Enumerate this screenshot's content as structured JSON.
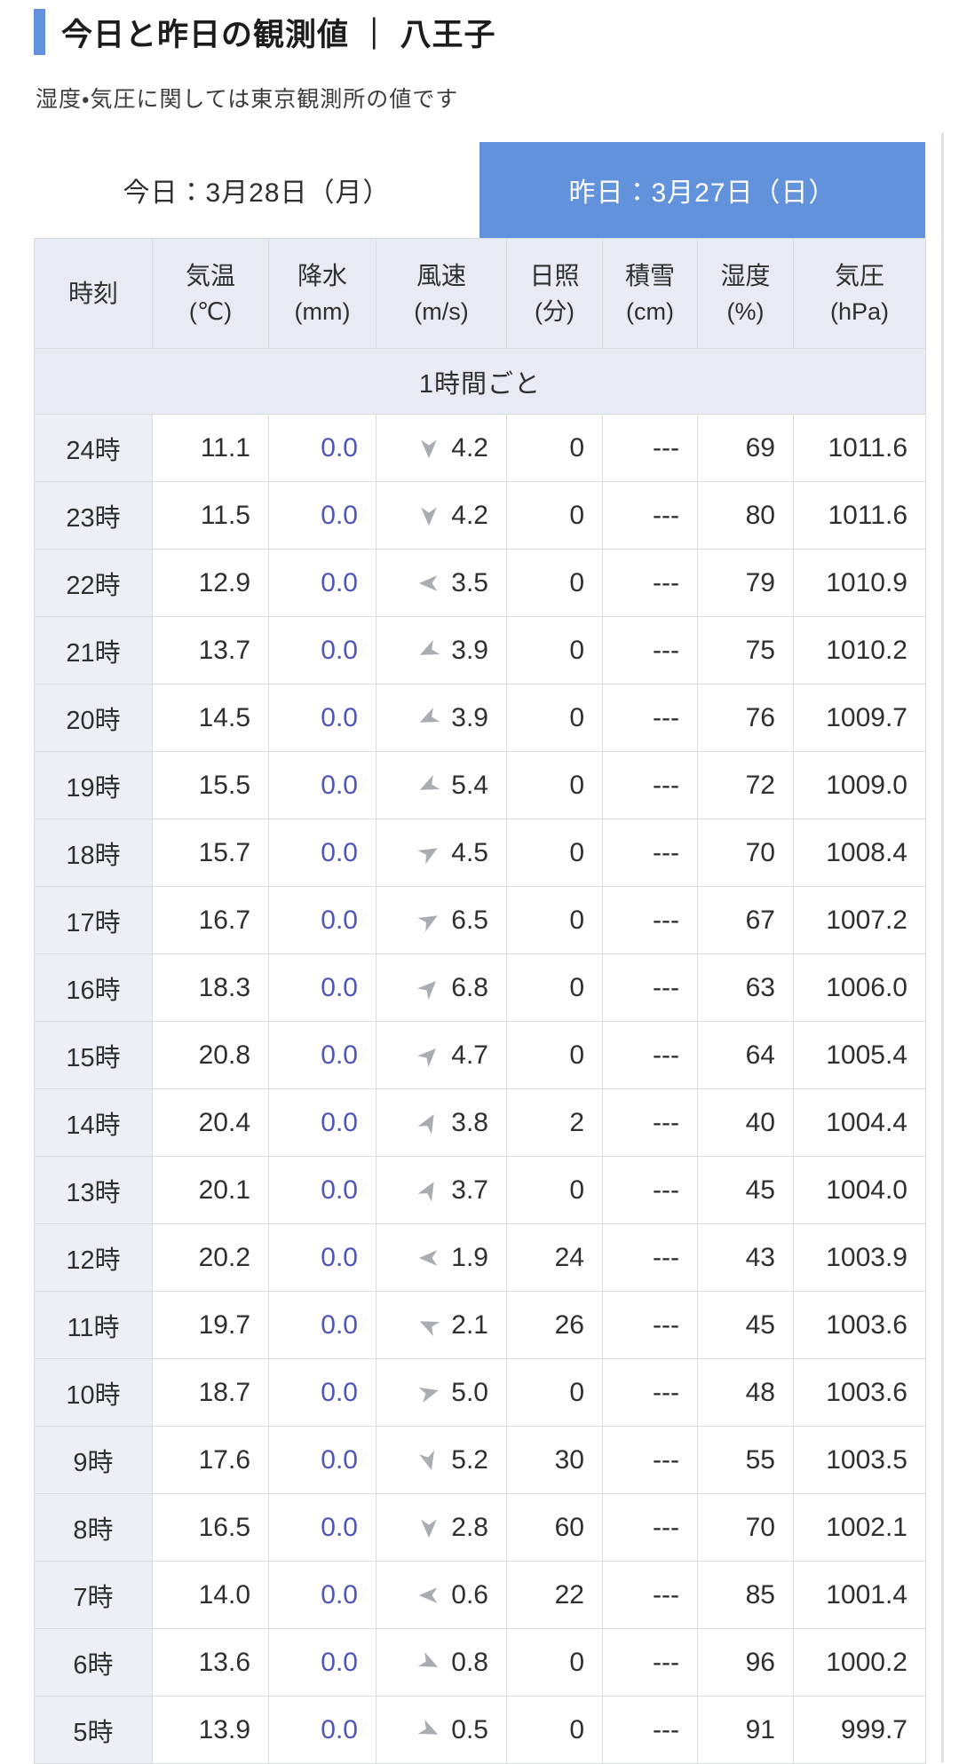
{
  "page": {
    "title": "今日と昨日の観測値 ｜ 八王子",
    "subtitle": "湿度・気圧に関しては東京観測所の値です"
  },
  "tabs": {
    "today": {
      "label": "今日：3月28日（月）",
      "active": false
    },
    "yesterday": {
      "label": "昨日：3月27日（日）",
      "active": true
    }
  },
  "colors": {
    "accent_blue": "#6292db",
    "precip_value_blue": "#4e57b5",
    "wind_arrow_gray": "#a9acb2",
    "header_bg": "#e8eaf4",
    "time_cell_bg": "#edeff7",
    "border": "#d8dade"
  },
  "table": {
    "columns": [
      {
        "label": "時刻",
        "unit": ""
      },
      {
        "label": "気温",
        "unit": "(℃)"
      },
      {
        "label": "降水",
        "unit": "(mm)"
      },
      {
        "label": "風速",
        "unit": "(m/s)"
      },
      {
        "label": "日照",
        "unit": "(分)"
      },
      {
        "label": "積雪",
        "unit": "(cm)"
      },
      {
        "label": "湿度",
        "unit": "(%)"
      },
      {
        "label": "気圧",
        "unit": "(hPa)"
      }
    ],
    "section_label": "1時間ごと",
    "rows": [
      {
        "time": "24時",
        "temp": "11.1",
        "precip": "0.0",
        "wind_dir_deg": 180,
        "wind": "4.2",
        "sun": "0",
        "snow": "---",
        "hum": "69",
        "pres": "1011.6"
      },
      {
        "time": "23時",
        "temp": "11.5",
        "precip": "0.0",
        "wind_dir_deg": 180,
        "wind": "4.2",
        "sun": "0",
        "snow": "---",
        "hum": "80",
        "pres": "1011.6"
      },
      {
        "time": "22時",
        "temp": "12.9",
        "precip": "0.0",
        "wind_dir_deg": 270,
        "wind": "3.5",
        "sun": "0",
        "snow": "---",
        "hum": "79",
        "pres": "1010.9"
      },
      {
        "time": "21時",
        "temp": "13.7",
        "precip": "0.0",
        "wind_dir_deg": 245,
        "wind": "3.9",
        "sun": "0",
        "snow": "---",
        "hum": "75",
        "pres": "1010.2"
      },
      {
        "time": "20時",
        "temp": "14.5",
        "precip": "0.0",
        "wind_dir_deg": 245,
        "wind": "3.9",
        "sun": "0",
        "snow": "---",
        "hum": "76",
        "pres": "1009.7"
      },
      {
        "time": "19時",
        "temp": "15.5",
        "precip": "0.0",
        "wind_dir_deg": 245,
        "wind": "5.4",
        "sun": "0",
        "snow": "---",
        "hum": "72",
        "pres": "1009.0"
      },
      {
        "time": "18時",
        "temp": "15.7",
        "precip": "0.0",
        "wind_dir_deg": 60,
        "wind": "4.5",
        "sun": "0",
        "snow": "---",
        "hum": "70",
        "pres": "1008.4"
      },
      {
        "time": "17時",
        "temp": "16.7",
        "precip": "0.0",
        "wind_dir_deg": 60,
        "wind": "6.5",
        "sun": "0",
        "snow": "---",
        "hum": "67",
        "pres": "1007.2"
      },
      {
        "time": "16時",
        "temp": "18.3",
        "precip": "0.0",
        "wind_dir_deg": 45,
        "wind": "6.8",
        "sun": "0",
        "snow": "---",
        "hum": "63",
        "pres": "1006.0"
      },
      {
        "time": "15時",
        "temp": "20.8",
        "precip": "0.0",
        "wind_dir_deg": 45,
        "wind": "4.7",
        "sun": "0",
        "snow": "---",
        "hum": "64",
        "pres": "1005.4"
      },
      {
        "time": "14時",
        "temp": "20.4",
        "precip": "0.0",
        "wind_dir_deg": 30,
        "wind": "3.8",
        "sun": "2",
        "snow": "---",
        "hum": "40",
        "pres": "1004.4"
      },
      {
        "time": "13時",
        "temp": "20.1",
        "precip": "0.0",
        "wind_dir_deg": 30,
        "wind": "3.7",
        "sun": "0",
        "snow": "---",
        "hum": "45",
        "pres": "1004.0"
      },
      {
        "time": "12時",
        "temp": "20.2",
        "precip": "0.0",
        "wind_dir_deg": 270,
        "wind": "1.9",
        "sun": "24",
        "snow": "---",
        "hum": "43",
        "pres": "1003.9"
      },
      {
        "time": "11時",
        "temp": "19.7",
        "precip": "0.0",
        "wind_dir_deg": 295,
        "wind": "2.1",
        "sun": "26",
        "snow": "---",
        "hum": "45",
        "pres": "1003.6"
      },
      {
        "time": "10時",
        "temp": "18.7",
        "precip": "0.0",
        "wind_dir_deg": 75,
        "wind": "5.0",
        "sun": "0",
        "snow": "---",
        "hum": "48",
        "pres": "1003.6"
      },
      {
        "time": "9時",
        "temp": "17.6",
        "precip": "0.0",
        "wind_dir_deg": 165,
        "wind": "5.2",
        "sun": "30",
        "snow": "---",
        "hum": "55",
        "pres": "1003.5"
      },
      {
        "time": "8時",
        "temp": "16.5",
        "precip": "0.0",
        "wind_dir_deg": 180,
        "wind": "2.8",
        "sun": "60",
        "snow": "---",
        "hum": "70",
        "pres": "1002.1"
      },
      {
        "time": "7時",
        "temp": "14.0",
        "precip": "0.0",
        "wind_dir_deg": 270,
        "wind": "0.6",
        "sun": "22",
        "snow": "---",
        "hum": "85",
        "pres": "1001.4"
      },
      {
        "time": "6時",
        "temp": "13.6",
        "precip": "0.0",
        "wind_dir_deg": 115,
        "wind": "0.8",
        "sun": "0",
        "snow": "---",
        "hum": "96",
        "pres": "1000.2"
      },
      {
        "time": "5時",
        "temp": "13.9",
        "precip": "0.0",
        "wind_dir_deg": 115,
        "wind": "0.5",
        "sun": "0",
        "snow": "---",
        "hum": "91",
        "pres": "999.7"
      }
    ]
  }
}
